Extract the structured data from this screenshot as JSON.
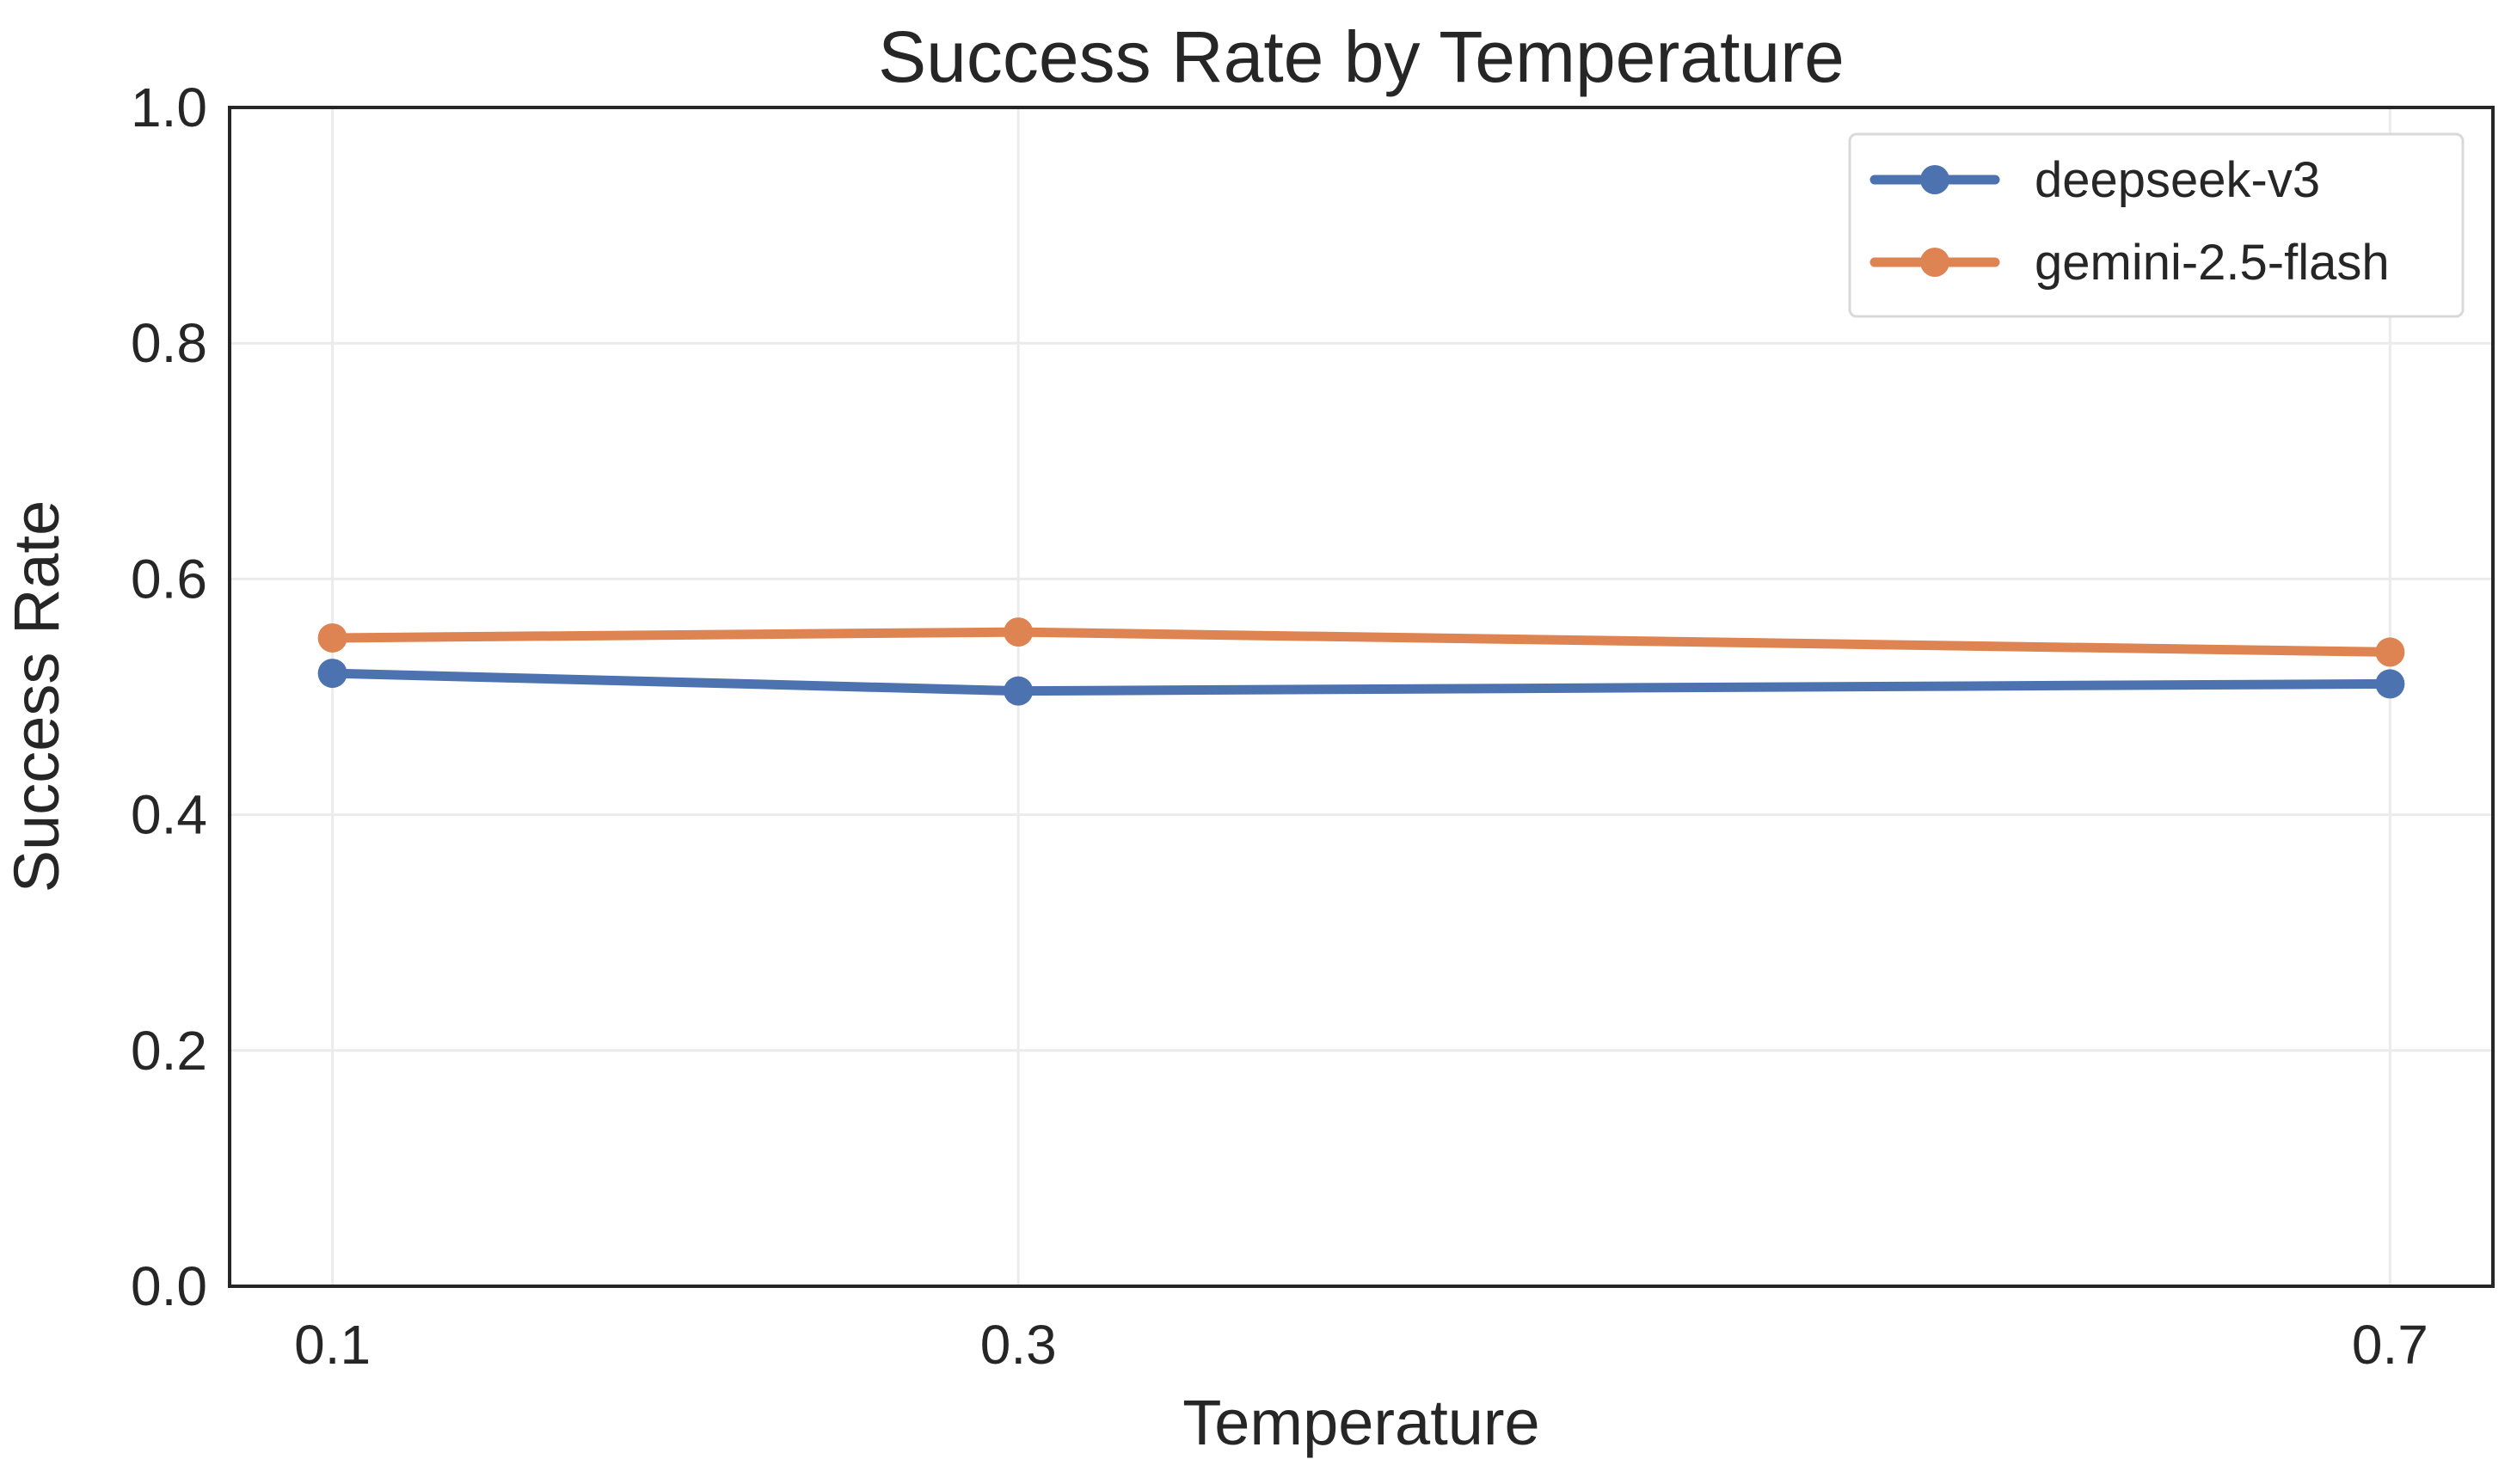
{
  "chart_data": {
    "type": "line",
    "title": "Success Rate by Temperature",
    "xlabel": "Temperature",
    "ylabel": "Success Rate",
    "x": [
      0.1,
      0.3,
      0.7
    ],
    "xticks": [
      "0.1",
      "0.3",
      "0.7"
    ],
    "xlim": [
      0.07,
      0.73
    ],
    "ylim": [
      0.0,
      1.0
    ],
    "yticks": [
      "0.0",
      "0.2",
      "0.4",
      "0.6",
      "0.8",
      "1.0"
    ],
    "grid": true,
    "legend_position": "top-right",
    "series": [
      {
        "name": "deepseek-v3",
        "color": "#4c72b0",
        "marker": "circle",
        "values": [
          0.52,
          0.505,
          0.511
        ]
      },
      {
        "name": "gemini-2.5-flash",
        "color": "#dd8452",
        "marker": "circle",
        "values": [
          0.55,
          0.555,
          0.538
        ]
      }
    ]
  }
}
